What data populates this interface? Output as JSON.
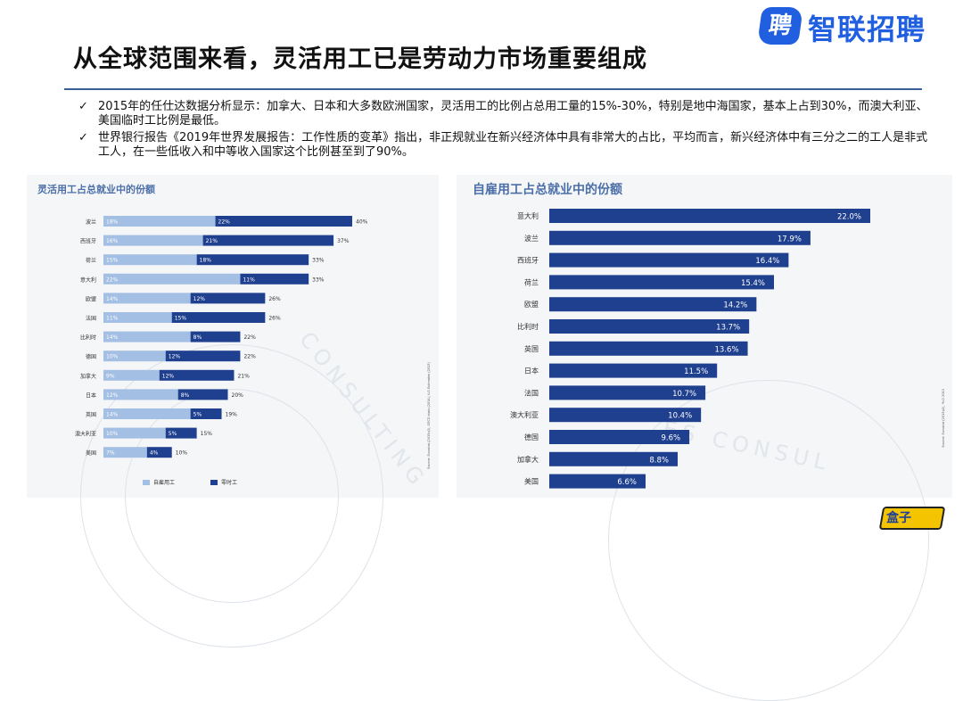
{
  "header": {
    "title": "从全球范围来看，灵活用工已是劳动力市场重要组成",
    "logo_badge": "聘",
    "logo_text": "智联招聘"
  },
  "bullets": [
    {
      "check": "✓",
      "text": "2015年的任仕达数据分析显示：加拿大、日本和大多数欧洲国家，灵活用工的比例占总用工量的15%-30%，特别是地中海国家，基本上占到30%，而澳大利亚、美国临时工比例是最低。"
    },
    {
      "check": "✓",
      "text": "世界银行报告《2019年世界发展报告：工作性质的变革》指出，非正规就业在新兴经济体中具有非常大的占比，平均而言，新兴经济体中有三分之二的工人是非式工人，在一些低收入和中等收入国家这个比例甚至到了90%。"
    }
  ],
  "watermark": {
    "left": "CONSULTING",
    "right": "ES CONSUL"
  },
  "mascot": {
    "text": "盒子"
  },
  "chart_data": [
    {
      "type": "bar",
      "stacked": true,
      "orientation": "horizontal",
      "title": "灵活用工占总就业中的份额",
      "categories": [
        "波兰",
        "西班牙",
        "荷兰",
        "意大利",
        "欧盟",
        "法国",
        "比利时",
        "德国",
        "加拿大",
        "日本",
        "英国",
        "澳大利亚",
        "美国"
      ],
      "series": [
        {
          "name": "自雇用工",
          "color": "#a3bfe3",
          "values": [
            18,
            16,
            15,
            22,
            14,
            11,
            14,
            10,
            9,
            12,
            14,
            10,
            7
          ],
          "labels": [
            "18%",
            "16%",
            "15%",
            "22%",
            "14%",
            "11%",
            "14%",
            "10%",
            "9%",
            "12%",
            "14%",
            "10%",
            "7%"
          ]
        },
        {
          "name": "零时工",
          "color": "#1f3f8f",
          "values": [
            22,
            21,
            18,
            11,
            12,
            15,
            8,
            12,
            12,
            8,
            5,
            5,
            4
          ],
          "labels": [
            "22%",
            "21%",
            "18%",
            "11%",
            "12%",
            "15%",
            "8%",
            "12%",
            "12%",
            "8%",
            "5%",
            "5%",
            "4%"
          ]
        }
      ],
      "totals": [
        "40%",
        "37%",
        "33%",
        "33%",
        "26%",
        "26%",
        "22%",
        "22%",
        "21%",
        "20%",
        "19%",
        "15%",
        "10%"
      ],
      "xlim": [
        0,
        40
      ],
      "legend": "bottom",
      "source": "Source: Eurostat (2015q2), OECD stats (2014), ILO Estimates (2015)"
    },
    {
      "type": "bar",
      "orientation": "horizontal",
      "title": "自雇用工占总就业中的份额",
      "categories": [
        "意大利",
        "波兰",
        "西班牙",
        "荷兰",
        "欧盟",
        "比利时",
        "英国",
        "日本",
        "法国",
        "澳大利亚",
        "德国",
        "加拿大",
        "美国"
      ],
      "values": [
        22.0,
        17.9,
        16.4,
        15.4,
        14.2,
        13.7,
        13.6,
        11.5,
        10.7,
        10.4,
        9.6,
        8.8,
        6.6
      ],
      "labels": [
        "22.0%",
        "17.9%",
        "16.4%",
        "15.4%",
        "14.2%",
        "13.7%",
        "13.6%",
        "11.5%",
        "10.7%",
        "10.4%",
        "9.6%",
        "8.8%",
        "6.6%"
      ],
      "color": "#1f3f8f",
      "xlim": [
        0,
        22
      ],
      "source": "Source: Eurostat (2015q2), *ILO 2013"
    }
  ]
}
